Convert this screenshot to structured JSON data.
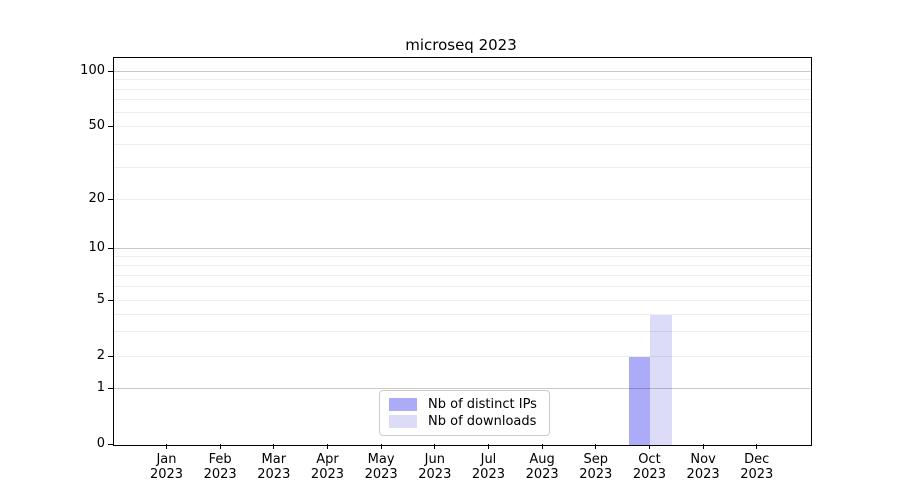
{
  "chart_data": {
    "type": "bar",
    "title": "microseq 2023",
    "categories": [
      "Jan",
      "Feb",
      "Mar",
      "Apr",
      "May",
      "Jun",
      "Jul",
      "Aug",
      "Sep",
      "Oct",
      "Nov",
      "Dec"
    ],
    "year": "2023",
    "series": [
      {
        "name": "Nb of distinct IPs",
        "color": "#ababf7",
        "values": [
          0,
          0,
          0,
          0,
          0,
          0,
          0,
          0,
          0,
          2,
          0,
          0
        ]
      },
      {
        "name": "Nb of downloads",
        "color": "#dcdcf8",
        "values": [
          0,
          0,
          0,
          0,
          0,
          0,
          0,
          0,
          0,
          4,
          0,
          0
        ]
      }
    ],
    "xlabel": "",
    "ylabel": "",
    "yscale": "log-like",
    "ylim": [
      0,
      120
    ],
    "y_ticks": [
      0,
      1,
      2,
      5,
      10,
      20,
      50,
      100
    ],
    "y_minor_ticks": [
      3,
      4,
      6,
      7,
      8,
      9,
      30,
      40,
      60,
      70,
      80,
      90
    ],
    "y_major_gridlines": [
      1,
      10,
      100
    ],
    "grid": true,
    "legend_position": "lower center",
    "frame_color": "#000000",
    "major_grid_color": "#c9c9c9",
    "minor_grid_color": "#ededed"
  }
}
